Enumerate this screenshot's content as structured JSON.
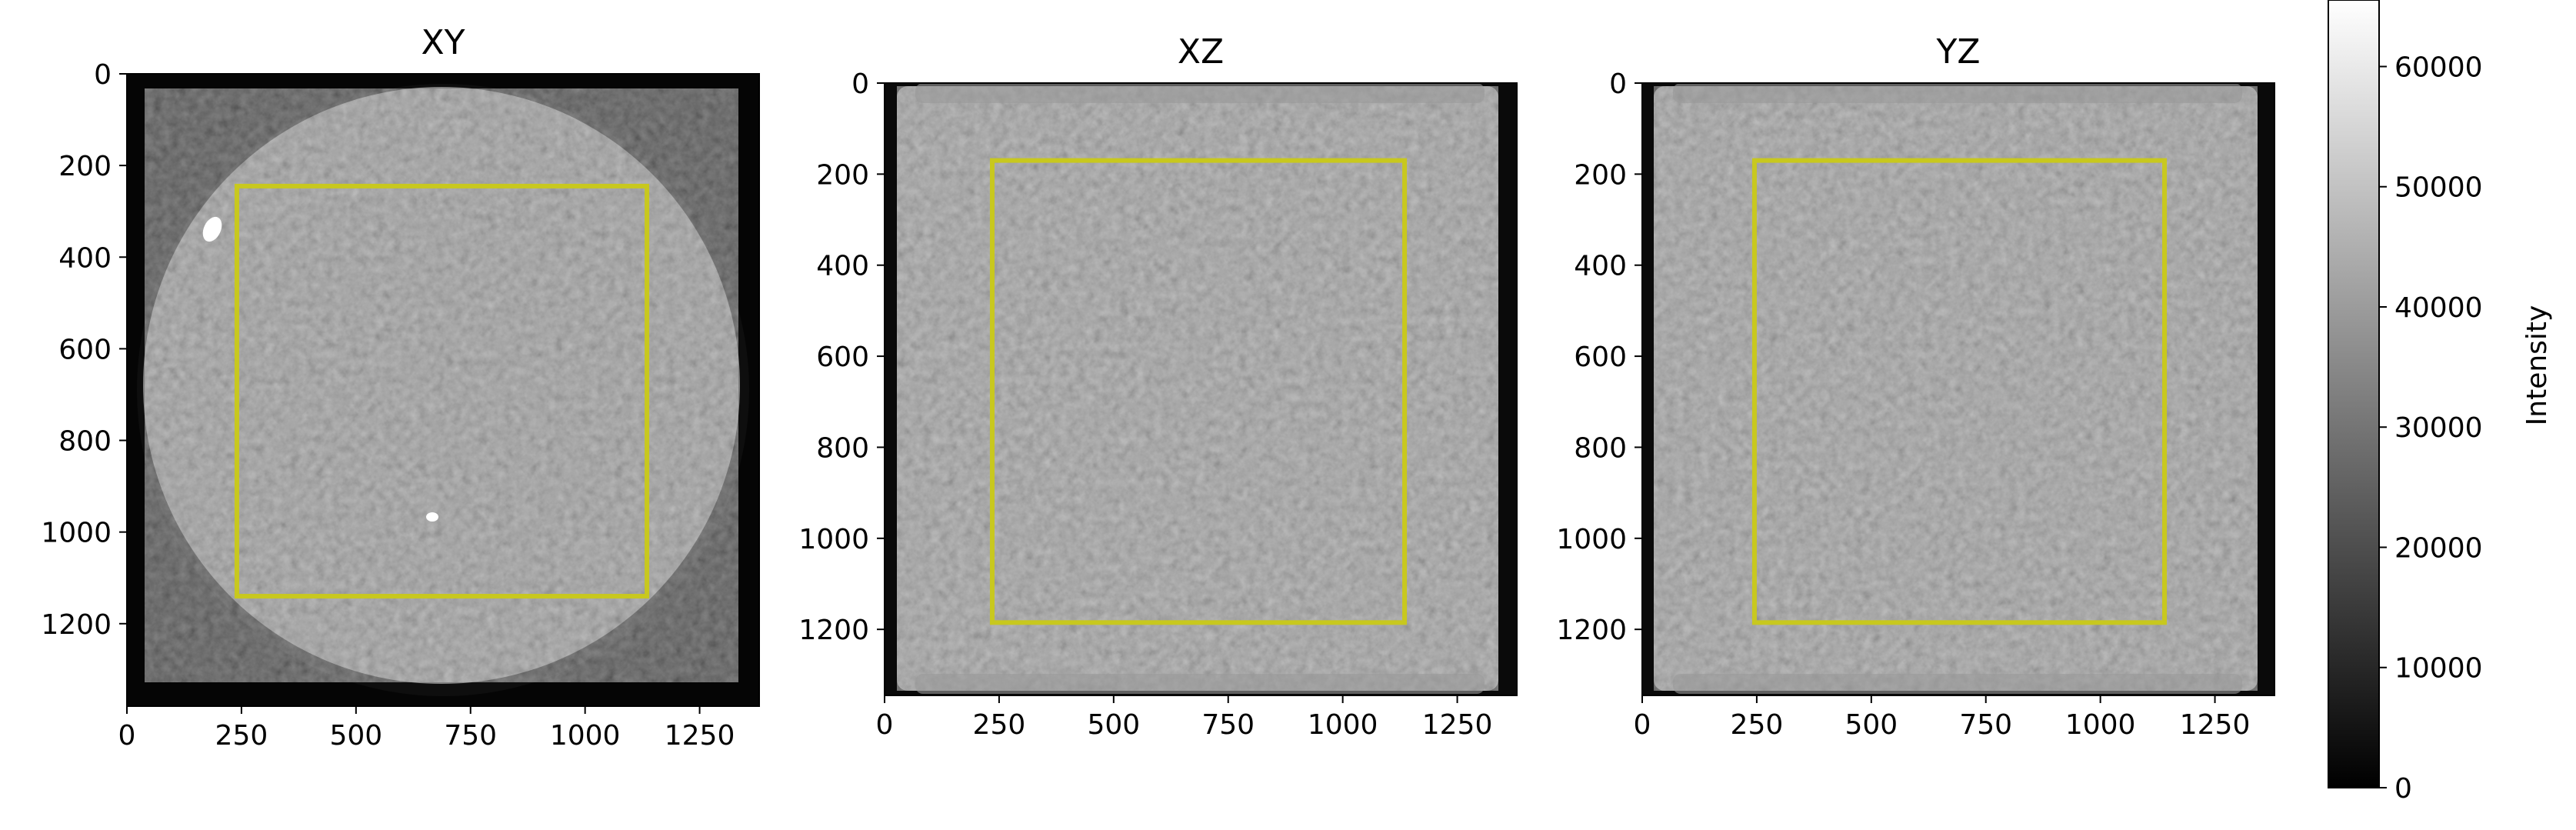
{
  "chart_data": [
    {
      "type": "heatmap",
      "title": "XY",
      "x_ticks": [
        0,
        250,
        500,
        750,
        1000,
        1250
      ],
      "y_ticks": [
        0,
        200,
        400,
        600,
        800,
        1000,
        1200
      ],
      "xlim": [
        0,
        1380
      ],
      "ylim": [
        1380,
        0
      ],
      "specimen_shape": "circle",
      "region_of_interest": {
        "x0": 240,
        "x1": 1135,
        "y0": 245,
        "y1": 1140,
        "color": "#c8c81e"
      }
    },
    {
      "type": "heatmap",
      "title": "XZ",
      "x_ticks": [
        0,
        250,
        500,
        750,
        1000,
        1250
      ],
      "y_ticks": [
        0,
        200,
        400,
        600,
        800,
        1000,
        1200
      ],
      "xlim": [
        0,
        1380
      ],
      "ylim": [
        1345,
        0
      ],
      "specimen_shape": "rectangle",
      "region_of_interest": {
        "x0": 235,
        "x1": 1135,
        "y0": 170,
        "y1": 1185,
        "color": "#c8c81e"
      }
    },
    {
      "type": "heatmap",
      "title": "YZ",
      "x_ticks": [
        0,
        250,
        500,
        750,
        1000,
        1250
      ],
      "y_ticks": [
        0,
        200,
        400,
        600,
        800,
        1000,
        1200
      ],
      "xlim": [
        0,
        1380
      ],
      "ylim": [
        1345,
        0
      ],
      "specimen_shape": "rectangle",
      "region_of_interest": {
        "x0": 245,
        "x1": 1140,
        "y0": 170,
        "y1": 1185,
        "color": "#c8c81e"
      }
    }
  ],
  "colorbar": {
    "label": "Intensity",
    "cmap": "gray",
    "range": [
      0,
      65535
    ],
    "ticks": [
      0,
      10000,
      20000,
      30000,
      40000,
      50000,
      60000
    ]
  }
}
